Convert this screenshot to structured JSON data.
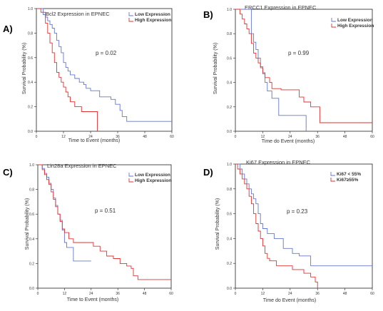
{
  "chart_data": [
    {
      "panel_label": "A)",
      "type": "line",
      "title": "Bcl2 Expression in EPNEC",
      "xlabel": "Time to Event (months)",
      "ylabel": "Survival Probability (%)",
      "xlim": [
        0,
        60
      ],
      "ylim": [
        0,
        1
      ],
      "xticks": [
        0,
        12,
        24,
        36,
        48,
        60
      ],
      "yticks": [
        "0.0",
        "0.2",
        "0.4",
        "0.6",
        "0.8",
        "1.0"
      ],
      "annotation": "p = 0.02",
      "grid": false,
      "legend_position": "top-right",
      "series": [
        {
          "name": "Low Expression",
          "color": "#6677cc",
          "x": [
            0,
            2,
            3,
            4,
            5,
            6,
            7,
            8,
            9,
            10,
            11,
            12,
            13,
            14,
            15,
            17,
            19,
            21,
            22,
            24,
            28,
            33,
            35,
            37,
            38,
            40,
            60
          ],
          "y": [
            1.0,
            1.0,
            0.95,
            0.93,
            0.9,
            0.87,
            0.84,
            0.8,
            0.74,
            0.69,
            0.64,
            0.56,
            0.52,
            0.49,
            0.46,
            0.43,
            0.4,
            0.38,
            0.35,
            0.33,
            0.28,
            0.26,
            0.22,
            0.17,
            0.12,
            0.08,
            0.08
          ]
        },
        {
          "name": "High Expression",
          "color": "#dd3333",
          "x": [
            0,
            2,
            4,
            5,
            6,
            7,
            8,
            9,
            10,
            11,
            12,
            13,
            14,
            15,
            17,
            20,
            27
          ],
          "y": [
            1.0,
            0.97,
            0.88,
            0.8,
            0.72,
            0.64,
            0.56,
            0.48,
            0.44,
            0.4,
            0.36,
            0.32,
            0.28,
            0.24,
            0.2,
            0.16,
            0.0
          ]
        }
      ]
    },
    {
      "panel_label": "B)",
      "type": "line",
      "title": "ERCC1 Expression in EPNEC",
      "xlabel": "Time do Event (months)",
      "ylabel": "Survival Probability (%)",
      "xlim": [
        0,
        60
      ],
      "ylim": [
        0,
        1
      ],
      "xticks": [
        0,
        12,
        24,
        36,
        48,
        60
      ],
      "yticks": [
        "0.0",
        "0.2",
        "0.4",
        "0.6",
        "0.8",
        "1.0"
      ],
      "annotation": "p = 0.99",
      "grid": false,
      "legend_position": "top-right",
      "series": [
        {
          "name": "Low Expression",
          "color": "#6677cc",
          "x": [
            0,
            6,
            7,
            8,
            9,
            10,
            11,
            12,
            13,
            14,
            16,
            19,
            26,
            31
          ],
          "y": [
            1.0,
            1.0,
            0.8,
            0.73,
            0.67,
            0.6,
            0.53,
            0.47,
            0.4,
            0.33,
            0.27,
            0.13,
            0.13,
            0.0
          ]
        },
        {
          "name": "High Expression",
          "color": "#dd3333",
          "x": [
            0,
            2,
            3,
            4,
            5,
            6,
            7,
            8,
            9,
            10,
            11,
            12,
            13,
            15,
            16,
            20,
            28,
            30,
            33,
            37,
            60
          ],
          "y": [
            1.0,
            0.96,
            0.92,
            0.88,
            0.84,
            0.8,
            0.72,
            0.64,
            0.6,
            0.56,
            0.52,
            0.48,
            0.44,
            0.4,
            0.35,
            0.34,
            0.28,
            0.24,
            0.2,
            0.07,
            0.07
          ]
        }
      ]
    },
    {
      "panel_label": "C)",
      "type": "line",
      "title": "Lin28a Expression in EPNEC",
      "xlabel": "Time to Event (months)",
      "ylabel": "Survival Probability (%)",
      "xlim": [
        0,
        60
      ],
      "ylim": [
        0,
        1
      ],
      "xticks": [
        0,
        12,
        24,
        36,
        48,
        60
      ],
      "yticks": [
        "0.0",
        "0.2",
        "0.4",
        "0.6",
        "0.8",
        "1.0"
      ],
      "annotation": "p = 0.51",
      "grid": false,
      "legend_position": "top-right",
      "series": [
        {
          "name": "Low Expression",
          "color": "#6677cc",
          "x": [
            0,
            2,
            3,
            4,
            5,
            6,
            7,
            8,
            9,
            10,
            11,
            12,
            13,
            16,
            19,
            24
          ],
          "y": [
            1.0,
            0.97,
            0.93,
            0.9,
            0.85,
            0.8,
            0.73,
            0.67,
            0.6,
            0.55,
            0.47,
            0.37,
            0.33,
            0.22,
            0.22,
            0.22
          ]
        },
        {
          "name": "High Expression",
          "color": "#dd3333",
          "x": [
            0,
            2,
            3,
            4,
            5,
            6,
            7,
            8,
            9,
            10,
            11,
            12,
            14,
            16,
            18,
            22,
            25,
            28,
            31,
            34,
            37,
            40,
            42,
            43,
            45,
            60
          ],
          "y": [
            1.0,
            0.96,
            0.92,
            0.88,
            0.84,
            0.78,
            0.72,
            0.66,
            0.6,
            0.54,
            0.48,
            0.45,
            0.4,
            0.37,
            0.37,
            0.37,
            0.34,
            0.3,
            0.26,
            0.24,
            0.2,
            0.18,
            0.16,
            0.1,
            0.07,
            0.07
          ]
        }
      ]
    },
    {
      "panel_label": "D)",
      "type": "line",
      "title": "Ki67 Expression in EPNEC",
      "xlabel": "Time do Event (months)",
      "ylabel": "Survival Probability (%)",
      "xlim": [
        0,
        60
      ],
      "ylim": [
        0,
        1
      ],
      "xticks": [
        0,
        12,
        24,
        36,
        48,
        60
      ],
      "yticks": [
        "0.0",
        "0.2",
        "0.4",
        "0.6",
        "0.8",
        "1.0"
      ],
      "annotation": "p = 0.23",
      "grid": false,
      "legend_position": "top-right",
      "series": [
        {
          "name": "Ki67 < 55%",
          "color": "#6677cc",
          "x": [
            0,
            2,
            3,
            4,
            5,
            6,
            7,
            8,
            9,
            10,
            11,
            12,
            14,
            17,
            21,
            25,
            28,
            33,
            36,
            60
          ],
          "y": [
            1.0,
            0.96,
            0.92,
            0.88,
            0.84,
            0.8,
            0.76,
            0.72,
            0.68,
            0.6,
            0.52,
            0.48,
            0.44,
            0.4,
            0.32,
            0.28,
            0.26,
            0.18,
            0.18,
            0.18
          ]
        },
        {
          "name": "Ki67≥55%",
          "color": "#dd3333",
          "x": [
            0,
            1,
            2,
            3,
            4,
            5,
            6,
            7,
            8,
            9,
            10,
            11,
            12,
            13,
            14,
            15,
            18,
            21,
            25,
            30,
            33,
            35,
            36
          ],
          "y": [
            1.0,
            0.96,
            0.92,
            0.88,
            0.84,
            0.8,
            0.74,
            0.68,
            0.6,
            0.52,
            0.46,
            0.4,
            0.34,
            0.28,
            0.24,
            0.22,
            0.18,
            0.18,
            0.15,
            0.12,
            0.09,
            0.05,
            0.0
          ]
        }
      ]
    }
  ]
}
